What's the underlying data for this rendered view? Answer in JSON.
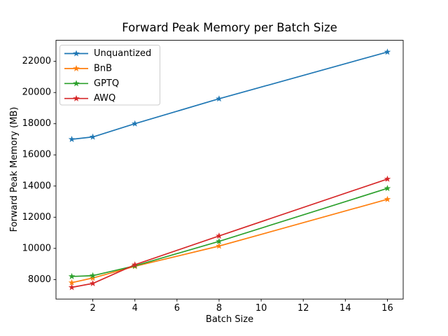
{
  "figure": {
    "background": "#ffffff"
  },
  "chart_data": {
    "type": "line",
    "title": "Forward Peak Memory per Batch Size",
    "xlabel": "Batch Size",
    "ylabel": "Forward Peak Memory (MB)",
    "x": [
      1,
      2,
      4,
      8,
      16
    ],
    "series": [
      {
        "name": "Unquantized",
        "color": "#1f77b4",
        "values": [
          17000,
          17150,
          18000,
          19600,
          22600
        ]
      },
      {
        "name": "BnB",
        "color": "#ff7f0e",
        "values": [
          7800,
          8100,
          8850,
          10150,
          13150
        ]
      },
      {
        "name": "GPTQ",
        "color": "#2ca02c",
        "values": [
          8200,
          8250,
          8880,
          10450,
          13850
        ]
      },
      {
        "name": "AWQ",
        "color": "#d62728",
        "values": [
          7500,
          7750,
          8950,
          10800,
          14450
        ]
      }
    ],
    "marker": "star",
    "line_width": 1.7,
    "xlim": [
      0.25,
      16.75
    ],
    "ylim": [
      6750,
      23350
    ],
    "x_ticks": [
      2,
      4,
      6,
      8,
      10,
      12,
      14,
      16
    ],
    "y_ticks": [
      8000,
      10000,
      12000,
      14000,
      16000,
      18000,
      20000,
      22000
    ],
    "grid": false,
    "legend": {
      "position": "upper-left",
      "border_color": "#cccccc",
      "background": "rgba(255,255,255,0.8)"
    },
    "axis_color": "#000000",
    "spine_box": true
  }
}
